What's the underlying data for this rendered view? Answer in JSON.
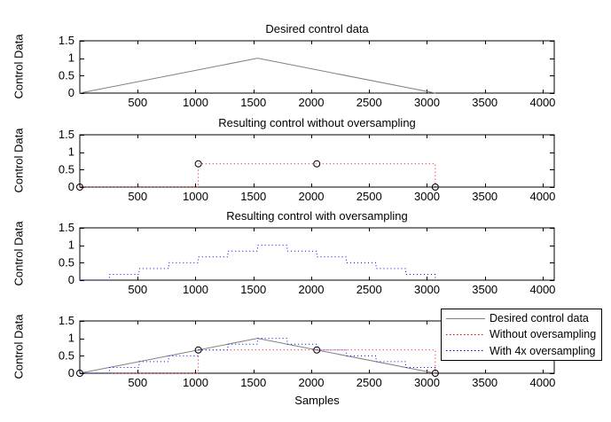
{
  "figure": {
    "background": "#ffffff"
  },
  "chart_data": [
    {
      "type": "line",
      "title": "Desired control data",
      "ylabel": "Control Data",
      "xlabel": "",
      "xlim": [
        0,
        4100
      ],
      "ylim": [
        0,
        1.5
      ],
      "x_ticks": [
        500,
        1000,
        1500,
        2000,
        2500,
        3000,
        3500,
        4000
      ],
      "y_ticks": [
        0,
        0.5,
        1,
        1.5
      ],
      "grid": false,
      "series": [
        {
          "name": "Desired control data",
          "type": "line",
          "style": "solid",
          "color": "#808080",
          "x": [
            0,
            1536,
            3072
          ],
          "y": [
            0,
            1,
            0
          ]
        }
      ]
    },
    {
      "type": "line",
      "title": "Resulting control without oversampling",
      "ylabel": "Control Data",
      "xlabel": "",
      "xlim": [
        0,
        4100
      ],
      "ylim": [
        0,
        1.5
      ],
      "x_ticks": [
        500,
        1000,
        1500,
        2000,
        2500,
        3000,
        3500,
        4000
      ],
      "y_ticks": [
        0,
        0.5,
        1,
        1.5
      ],
      "grid": false,
      "series": [
        {
          "name": "Without oversampling",
          "type": "stairs",
          "style": "dotted",
          "color": "#ef0000",
          "marker": "circle",
          "marker_color": "#000000",
          "x": [
            0,
            1024,
            2048,
            3072
          ],
          "y": [
            0,
            0.6667,
            0.6667,
            0
          ]
        }
      ]
    },
    {
      "type": "line",
      "title": "Resulting control with oversampling",
      "ylabel": "Control Data",
      "xlabel": "",
      "xlim": [
        0,
        4100
      ],
      "ylim": [
        0,
        1.5
      ],
      "x_ticks": [
        500,
        1000,
        1500,
        2000,
        2500,
        3000,
        3500,
        4000
      ],
      "y_ticks": [
        0,
        0.5,
        1,
        1.5
      ],
      "grid": false,
      "series": [
        {
          "name": "With 4x oversampling",
          "type": "stairs",
          "style": "dotted",
          "color": "#0000ee",
          "x": [
            0,
            256,
            512,
            768,
            1024,
            1280,
            1536,
            1792,
            2048,
            2304,
            2560,
            2816,
            3072
          ],
          "y": [
            0,
            0.1667,
            0.3333,
            0.5,
            0.6667,
            0.8333,
            1,
            0.8333,
            0.6667,
            0.5,
            0.3333,
            0.1667,
            0
          ]
        }
      ]
    },
    {
      "type": "line",
      "title": "",
      "ylabel": "Control Data",
      "xlabel": "Samples",
      "xlim": [
        0,
        4100
      ],
      "ylim": [
        0,
        1.5
      ],
      "x_ticks": [
        500,
        1000,
        1500,
        2000,
        2500,
        3000,
        3500,
        4000
      ],
      "y_ticks": [
        0,
        0.5,
        1,
        1.5
      ],
      "grid": false,
      "legend_position": "top-right",
      "series": [
        {
          "name": "Desired control data",
          "type": "line",
          "style": "solid",
          "color": "#808080",
          "x": [
            0,
            1536,
            3072
          ],
          "y": [
            0,
            1,
            0
          ]
        },
        {
          "name": "Without oversampling",
          "type": "stairs",
          "style": "dotted",
          "color": "#ef0000",
          "marker": "circle",
          "marker_color": "#000000",
          "x": [
            0,
            1024,
            2048,
            3072
          ],
          "y": [
            0,
            0.6667,
            0.6667,
            0
          ]
        },
        {
          "name": "With 4x oversampling",
          "type": "stairs",
          "style": "dotted",
          "color": "#0000ee",
          "x": [
            0,
            256,
            512,
            768,
            1024,
            1280,
            1536,
            1792,
            2048,
            2304,
            2560,
            2816,
            3072
          ],
          "y": [
            0,
            0.1667,
            0.3333,
            0.5,
            0.6667,
            0.8333,
            1,
            0.8333,
            0.6667,
            0.5,
            0.3333,
            0.1667,
            0
          ]
        }
      ]
    }
  ],
  "legend": {
    "items": [
      {
        "label": "Desired control data",
        "color": "#808080",
        "style": "solid"
      },
      {
        "label": "Without oversampling",
        "color": "#ef0000",
        "style": "dotted"
      },
      {
        "label": "With 4x oversampling",
        "color": "#0000ee",
        "style": "dotted"
      }
    ]
  }
}
